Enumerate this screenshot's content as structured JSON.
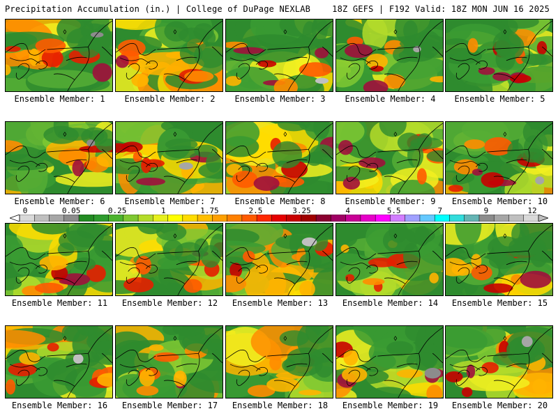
{
  "header": {
    "title": "Precipitation Accumulation (in.) | College of DuPage NEXLAB",
    "valid": "18Z GEFS | F192 Valid: 18Z MON JUN 16 2025"
  },
  "colorbar": {
    "labels": [
      "0",
      "0.05",
      "0.25",
      "1",
      "1.75",
      "2.5",
      "3.25",
      "4",
      "5.5",
      "7",
      "9",
      "12"
    ],
    "colors": [
      "#d9d9d9",
      "#bfbfbf",
      "#a6a6a6",
      "#8c8c8c",
      "#228b22",
      "#2e9b2e",
      "#4cb32e",
      "#7fc832",
      "#b4dc2a",
      "#e6f01e",
      "#ffff00",
      "#ffdc00",
      "#ffbe00",
      "#ffa000",
      "#ff8000",
      "#ff5a00",
      "#ff2800",
      "#e60000",
      "#c80000",
      "#a00000",
      "#8b0030",
      "#a00064",
      "#c80096",
      "#e600c8",
      "#ff00ff",
      "#d27dff",
      "#a0a0ff",
      "#64c8ff",
      "#00ffff",
      "#32dcdc",
      "#64b4b4",
      "#8c8c8c",
      "#a6a6a6",
      "#bfbfbf",
      "#d9d9d9"
    ]
  },
  "panels": [
    {
      "label": "Ensemble Member: 1"
    },
    {
      "label": "Ensemble Member: 2"
    },
    {
      "label": "Ensemble Member: 3"
    },
    {
      "label": "Ensemble Member: 4"
    },
    {
      "label": "Ensemble Member: 5"
    },
    {
      "label": "Ensemble Member: 6"
    },
    {
      "label": "Ensemble Member: 7"
    },
    {
      "label": "Ensemble Member: 8"
    },
    {
      "label": "Ensemble Member: 9"
    },
    {
      "label": "Ensemble Member: 10"
    },
    {
      "label": "Ensemble Member: 11"
    },
    {
      "label": "Ensemble Member: 12"
    },
    {
      "label": "Ensemble Member: 13"
    },
    {
      "label": "Ensemble Member: 14"
    },
    {
      "label": "Ensemble Member: 15"
    },
    {
      "label": "Ensemble Member: 16"
    },
    {
      "label": "Ensemble Member: 17"
    },
    {
      "label": "Ensemble Member: 18"
    },
    {
      "label": "Ensemble Member: 19"
    },
    {
      "label": "Ensemble Member: 20"
    }
  ]
}
